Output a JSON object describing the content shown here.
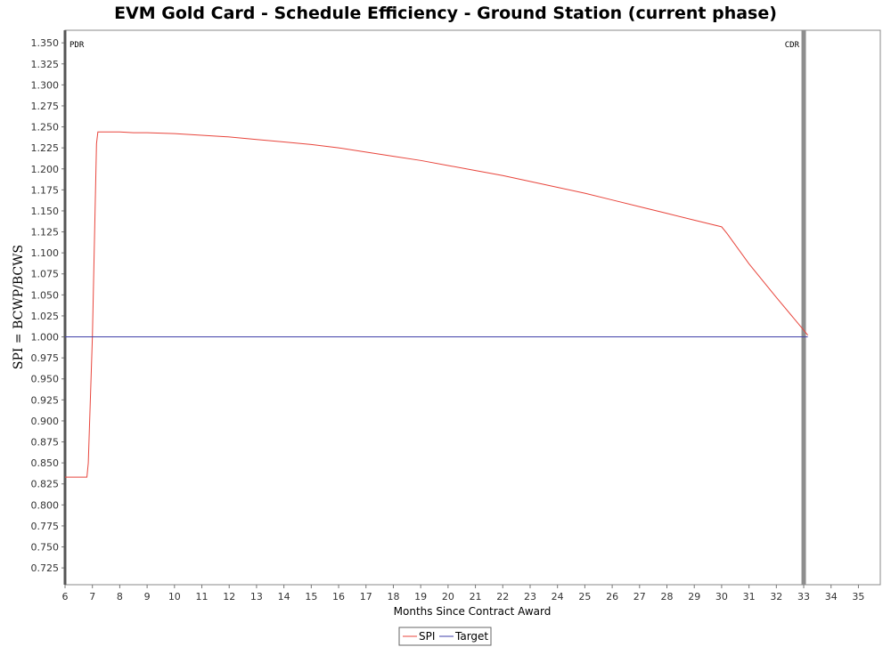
{
  "chart_data": {
    "type": "line",
    "title": "EVM Gold Card - Schedule Efficiency - Ground Station (current phase)",
    "xlabel": "Months Since Contract Award",
    "ylabel": "SPI = BCWP/BCWS",
    "xlim": [
      6,
      35.8
    ],
    "ylim": [
      0.705,
      1.365
    ],
    "x_ticks": [
      6,
      7,
      8,
      9,
      10,
      11,
      12,
      13,
      14,
      15,
      16,
      17,
      18,
      19,
      20,
      21,
      22,
      23,
      24,
      25,
      26,
      27,
      28,
      29,
      30,
      31,
      32,
      33,
      34,
      35
    ],
    "y_ticks": [
      "0.725",
      "0.750",
      "0.775",
      "0.800",
      "0.825",
      "0.850",
      "0.875",
      "0.900",
      "0.925",
      "0.950",
      "0.975",
      "1.000",
      "1.025",
      "1.050",
      "1.075",
      "1.100",
      "1.125",
      "1.150",
      "1.175",
      "1.200",
      "1.225",
      "1.250",
      "1.275",
      "1.300",
      "1.325",
      "1.350"
    ],
    "series": [
      {
        "name": "SPI",
        "color": "#e8453c",
        "x": [
          6.0,
          6.8,
          6.82,
          6.85,
          7.0,
          7.15,
          7.2,
          8.0,
          8.5,
          9.0,
          10.0,
          11.0,
          12.0,
          13.0,
          14.0,
          15.0,
          16.0,
          17.0,
          18.0,
          19.0,
          20.0,
          21.0,
          22.0,
          23.0,
          24.0,
          25.0,
          26.0,
          27.0,
          28.0,
          29.0,
          30.0,
          30.2,
          31.0,
          32.0,
          33.0,
          33.15
        ],
        "y": [
          0.833,
          0.833,
          0.84,
          0.85,
          1.0,
          1.23,
          1.244,
          1.244,
          1.243,
          1.243,
          1.242,
          1.24,
          1.238,
          1.235,
          1.232,
          1.229,
          1.225,
          1.22,
          1.215,
          1.21,
          1.204,
          1.198,
          1.192,
          1.185,
          1.178,
          1.171,
          1.163,
          1.155,
          1.147,
          1.139,
          1.131,
          1.123,
          1.087,
          1.047,
          1.008,
          1.002
        ]
      },
      {
        "name": "Target",
        "color": "#3f3fa8",
        "x": [
          6.0,
          33.15
        ],
        "y": [
          1.0,
          1.0
        ]
      }
    ],
    "markers": [
      {
        "label": "PDR",
        "x": 6.0
      },
      {
        "label": "CDR",
        "x": 33.0
      }
    ],
    "grid": false,
    "legend_position": "bottom-center"
  }
}
